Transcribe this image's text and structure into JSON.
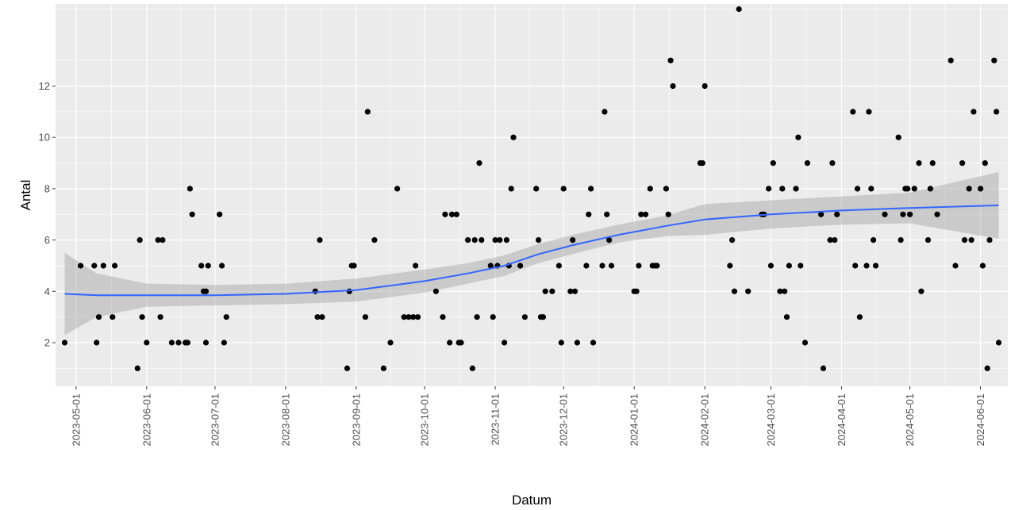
{
  "chart_data": {
    "type": "scatter",
    "xlabel": "Datum",
    "ylabel": "Antal",
    "xlim": [
      "2023-04-22",
      "2024-06-13"
    ],
    "ylim": [
      0.3,
      15.2
    ],
    "y_ticks": [
      2,
      4,
      6,
      8,
      10,
      12
    ],
    "x_ticks": [
      "2023-05-01",
      "2023-06-01",
      "2023-07-01",
      "2023-08-01",
      "2023-09-01",
      "2023-10-01",
      "2023-11-01",
      "2023-12-01",
      "2024-01-01",
      "2024-02-01",
      "2024-03-01",
      "2024-04-01",
      "2024-05-01",
      "2024-06-01"
    ],
    "grid": true,
    "panel_background": "#ebebeb",
    "point_color": "#000000",
    "smooth_color": "#3366ff",
    "ribbon_color": "#999999",
    "points": [
      [
        "2023-04-26",
        2
      ],
      [
        "2023-05-03",
        5
      ],
      [
        "2023-05-09",
        5
      ],
      [
        "2023-05-10",
        2
      ],
      [
        "2023-05-11",
        3
      ],
      [
        "2023-05-13",
        5
      ],
      [
        "2023-05-17",
        3
      ],
      [
        "2023-05-18",
        5
      ],
      [
        "2023-05-28",
        1
      ],
      [
        "2023-05-29",
        6
      ],
      [
        "2023-05-30",
        3
      ],
      [
        "2023-06-01",
        2
      ],
      [
        "2023-06-06",
        6
      ],
      [
        "2023-06-07",
        3
      ],
      [
        "2023-06-08",
        6
      ],
      [
        "2023-06-12",
        2
      ],
      [
        "2023-06-15",
        2
      ],
      [
        "2023-06-18",
        2
      ],
      [
        "2023-06-19",
        2
      ],
      [
        "2023-06-20",
        8
      ],
      [
        "2023-06-21",
        7
      ],
      [
        "2023-06-25",
        5
      ],
      [
        "2023-06-26",
        4
      ],
      [
        "2023-06-27",
        2
      ],
      [
        "2023-06-27",
        4
      ],
      [
        "2023-06-28",
        5
      ],
      [
        "2023-07-03",
        7
      ],
      [
        "2023-07-04",
        5
      ],
      [
        "2023-07-05",
        2
      ],
      [
        "2023-07-06",
        3
      ],
      [
        "2023-08-14",
        4
      ],
      [
        "2023-08-15",
        3
      ],
      [
        "2023-08-16",
        6
      ],
      [
        "2023-08-17",
        3
      ],
      [
        "2023-08-28",
        1
      ],
      [
        "2023-08-29",
        4
      ],
      [
        "2023-08-30",
        5
      ],
      [
        "2023-08-31",
        5
      ],
      [
        "2023-09-05",
        3
      ],
      [
        "2023-09-06",
        11
      ],
      [
        "2023-09-09",
        6
      ],
      [
        "2023-09-13",
        1
      ],
      [
        "2023-09-16",
        2
      ],
      [
        "2023-09-19",
        8
      ],
      [
        "2023-09-22",
        3
      ],
      [
        "2023-09-24",
        3
      ],
      [
        "2023-09-26",
        3
      ],
      [
        "2023-09-27",
        5
      ],
      [
        "2023-09-28",
        3
      ],
      [
        "2023-10-06",
        4
      ],
      [
        "2023-10-09",
        3
      ],
      [
        "2023-10-10",
        7
      ],
      [
        "2023-10-12",
        2
      ],
      [
        "2023-10-13",
        7
      ],
      [
        "2023-10-15",
        7
      ],
      [
        "2023-10-16",
        2
      ],
      [
        "2023-10-17",
        2
      ],
      [
        "2023-10-20",
        6
      ],
      [
        "2023-10-22",
        1
      ],
      [
        "2023-10-23",
        6
      ],
      [
        "2023-10-24",
        3
      ],
      [
        "2023-10-25",
        9
      ],
      [
        "2023-10-26",
        6
      ],
      [
        "2023-10-30",
        5
      ],
      [
        "2023-10-31",
        3
      ],
      [
        "2023-11-01",
        6
      ],
      [
        "2023-11-02",
        5
      ],
      [
        "2023-11-03",
        6
      ],
      [
        "2023-11-05",
        2
      ],
      [
        "2023-11-06",
        6
      ],
      [
        "2023-11-07",
        5
      ],
      [
        "2023-11-08",
        8
      ],
      [
        "2023-11-09",
        10
      ],
      [
        "2023-11-12",
        5
      ],
      [
        "2023-11-14",
        3
      ],
      [
        "2023-11-19",
        8
      ],
      [
        "2023-11-20",
        6
      ],
      [
        "2023-11-21",
        3
      ],
      [
        "2023-11-22",
        3
      ],
      [
        "2023-11-23",
        4
      ],
      [
        "2023-11-26",
        4
      ],
      [
        "2023-11-29",
        5
      ],
      [
        "2023-11-30",
        2
      ],
      [
        "2023-12-01",
        8
      ],
      [
        "2023-12-04",
        4
      ],
      [
        "2023-12-05",
        6
      ],
      [
        "2023-12-06",
        4
      ],
      [
        "2023-12-07",
        2
      ],
      [
        "2023-12-11",
        5
      ],
      [
        "2023-12-12",
        7
      ],
      [
        "2023-12-13",
        8
      ],
      [
        "2023-12-14",
        2
      ],
      [
        "2023-12-18",
        5
      ],
      [
        "2023-12-19",
        11
      ],
      [
        "2023-12-20",
        7
      ],
      [
        "2023-12-21",
        6
      ],
      [
        "2023-12-22",
        5
      ],
      [
        "2024-01-01",
        4
      ],
      [
        "2024-01-02",
        4
      ],
      [
        "2024-01-03",
        5
      ],
      [
        "2024-01-04",
        7
      ],
      [
        "2024-01-06",
        7
      ],
      [
        "2024-01-08",
        8
      ],
      [
        "2024-01-09",
        5
      ],
      [
        "2024-01-10",
        5
      ],
      [
        "2024-01-11",
        5
      ],
      [
        "2024-01-15",
        8
      ],
      [
        "2024-01-16",
        7
      ],
      [
        "2024-01-17",
        13
      ],
      [
        "2024-01-18",
        12
      ],
      [
        "2024-01-30",
        9
      ],
      [
        "2024-01-31",
        9
      ],
      [
        "2024-02-01",
        12
      ],
      [
        "2024-02-12",
        5
      ],
      [
        "2024-02-13",
        6
      ],
      [
        "2024-02-14",
        4
      ],
      [
        "2024-02-16",
        15
      ],
      [
        "2024-02-20",
        4
      ],
      [
        "2024-02-26",
        7
      ],
      [
        "2024-02-27",
        7
      ],
      [
        "2024-02-29",
        8
      ],
      [
        "2024-03-01",
        5
      ],
      [
        "2024-03-02",
        9
      ],
      [
        "2024-03-05",
        4
      ],
      [
        "2024-03-06",
        8
      ],
      [
        "2024-03-07",
        4
      ],
      [
        "2024-03-08",
        3
      ],
      [
        "2024-03-09",
        5
      ],
      [
        "2024-03-12",
        8
      ],
      [
        "2024-03-13",
        10
      ],
      [
        "2024-03-14",
        5
      ],
      [
        "2024-03-16",
        2
      ],
      [
        "2024-03-17",
        9
      ],
      [
        "2024-03-23",
        7
      ],
      [
        "2024-03-24",
        1
      ],
      [
        "2024-03-27",
        6
      ],
      [
        "2024-03-28",
        9
      ],
      [
        "2024-03-29",
        6
      ],
      [
        "2024-03-30",
        7
      ],
      [
        "2024-04-06",
        11
      ],
      [
        "2024-04-07",
        5
      ],
      [
        "2024-04-08",
        8
      ],
      [
        "2024-04-09",
        3
      ],
      [
        "2024-04-12",
        5
      ],
      [
        "2024-04-13",
        11
      ],
      [
        "2024-04-14",
        8
      ],
      [
        "2024-04-15",
        6
      ],
      [
        "2024-04-16",
        5
      ],
      [
        "2024-04-20",
        7
      ],
      [
        "2024-04-26",
        10
      ],
      [
        "2024-04-27",
        6
      ],
      [
        "2024-04-28",
        7
      ],
      [
        "2024-04-29",
        8
      ],
      [
        "2024-04-30",
        8
      ],
      [
        "2024-05-01",
        7
      ],
      [
        "2024-05-03",
        8
      ],
      [
        "2024-05-05",
        9
      ],
      [
        "2024-05-06",
        4
      ],
      [
        "2024-05-09",
        6
      ],
      [
        "2024-05-10",
        8
      ],
      [
        "2024-05-11",
        9
      ],
      [
        "2024-05-13",
        7
      ],
      [
        "2024-05-19",
        13
      ],
      [
        "2024-05-21",
        5
      ],
      [
        "2024-05-24",
        9
      ],
      [
        "2024-05-25",
        6
      ],
      [
        "2024-05-27",
        8
      ],
      [
        "2024-05-28",
        6
      ],
      [
        "2024-05-29",
        11
      ],
      [
        "2024-06-01",
        8
      ],
      [
        "2024-06-02",
        5
      ],
      [
        "2024-06-03",
        9
      ],
      [
        "2024-06-04",
        1
      ],
      [
        "2024-06-05",
        6
      ],
      [
        "2024-06-07",
        13
      ],
      [
        "2024-06-08",
        11
      ],
      [
        "2024-06-09",
        2
      ]
    ],
    "smooth": {
      "x": [
        "2023-04-26",
        "2023-05-10",
        "2023-06-01",
        "2023-07-01",
        "2023-08-01",
        "2023-09-01",
        "2023-10-01",
        "2023-10-20",
        "2023-11-05",
        "2023-11-20",
        "2023-12-05",
        "2023-12-25",
        "2024-01-15",
        "2024-02-01",
        "2024-03-01",
        "2024-04-01",
        "2024-05-01",
        "2024-06-09"
      ],
      "y": [
        3.9,
        3.85,
        3.85,
        3.85,
        3.9,
        4.05,
        4.4,
        4.7,
        5.0,
        5.45,
        5.8,
        6.2,
        6.55,
        6.8,
        7.0,
        7.15,
        7.25,
        7.35
      ],
      "lower": [
        2.3,
        3.0,
        3.4,
        3.45,
        3.5,
        3.6,
        3.95,
        4.3,
        4.6,
        5.1,
        5.45,
        5.9,
        6.15,
        6.2,
        6.45,
        6.6,
        6.65,
        6.05
      ],
      "upper": [
        5.5,
        4.7,
        4.3,
        4.25,
        4.3,
        4.5,
        4.85,
        5.1,
        5.4,
        5.85,
        6.2,
        6.6,
        6.95,
        7.4,
        7.55,
        7.7,
        7.85,
        8.65
      ]
    }
  }
}
